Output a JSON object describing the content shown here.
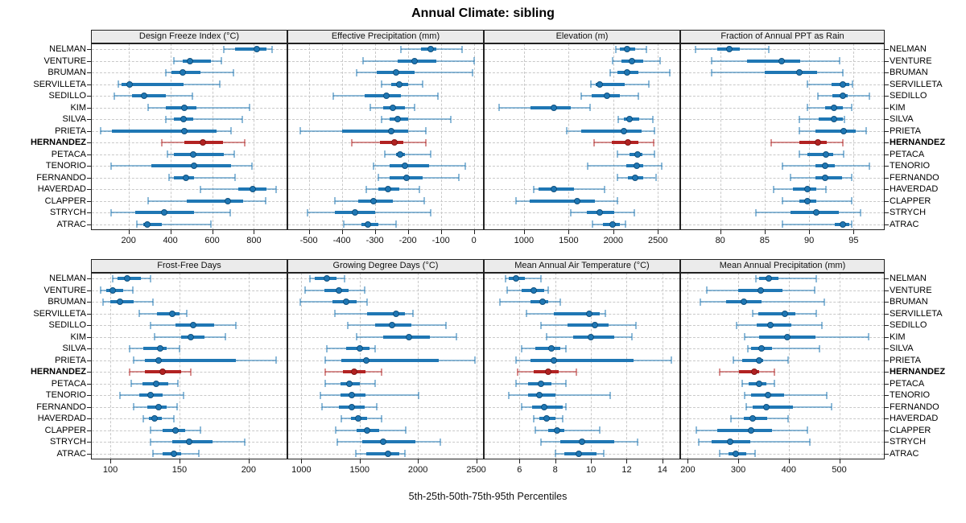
{
  "title": "Annual Climate: sibling",
  "caption": "5th-25th-50th-75th-95th Percentiles",
  "colors": {
    "series_blue": "#1f77b4",
    "series_blue_light": "rgba(31,119,180,0.5)",
    "highlight_red": "#b22222",
    "highlight_red_light": "rgba(178,34,34,0.5)",
    "strip_bg": "#ebebeb",
    "grid": "#c9c9c9",
    "border": "#222222"
  },
  "chart_data": {
    "type": "dot-interval-lattice",
    "percentiles": [
      5,
      25,
      50,
      75,
      95
    ],
    "highlight_site": "HERNANDEZ",
    "sites": [
      "NELMAN",
      "VENTURE",
      "BRUMAN",
      "SERVILLETA",
      "SEDILLO",
      "KIM",
      "SILVA",
      "PRIETA",
      "HERNANDEZ",
      "PETACA",
      "TENORIO",
      "FERNANDO",
      "HAVERDAD",
      "CLAPPER",
      "STRYCH",
      "ATRAC"
    ],
    "panels": [
      {
        "title": "Design Freeze Index (°C)",
        "ticks": [
          200,
          400,
          600,
          800
        ],
        "xlim": [
          20,
          960
        ],
        "values": [
          [
            655,
            710,
            815,
            860,
            885
          ],
          [
            415,
            460,
            495,
            595,
            645
          ],
          [
            380,
            405,
            460,
            545,
            700
          ],
          [
            150,
            165,
            205,
            465,
            635
          ],
          [
            130,
            215,
            275,
            380,
            505
          ],
          [
            295,
            380,
            468,
            525,
            780
          ],
          [
            380,
            415,
            462,
            510,
            745
          ],
          [
            65,
            120,
            465,
            620,
            690
          ],
          [
            360,
            465,
            555,
            650,
            755
          ],
          [
            385,
            415,
            510,
            655,
            705
          ],
          [
            115,
            310,
            515,
            690,
            790
          ],
          [
            395,
            415,
            475,
            515,
            710
          ],
          [
            545,
            725,
            795,
            860,
            905
          ],
          [
            295,
            480,
            675,
            750,
            855
          ],
          [
            115,
            230,
            370,
            515,
            685
          ],
          [
            240,
            270,
            290,
            360,
            595
          ]
        ]
      },
      {
        "title": "Effective Precipitation (mm)",
        "ticks": [
          -500,
          -400,
          -300,
          -200,
          -100,
          0
        ],
        "xlim": [
          -565,
          30
        ],
        "values": [
          [
            -220,
            -160,
            -130,
            -115,
            -35
          ],
          [
            -335,
            -230,
            -180,
            -115,
            0
          ],
          [
            -355,
            -295,
            -235,
            -180,
            -5
          ],
          [
            -280,
            -250,
            -225,
            -200,
            -155
          ],
          [
            -425,
            -330,
            -265,
            -220,
            -110
          ],
          [
            -315,
            -275,
            -245,
            -210,
            -180
          ],
          [
            -280,
            -255,
            -230,
            -200,
            -70
          ],
          [
            -525,
            -400,
            -250,
            -200,
            -145
          ],
          [
            -370,
            -285,
            -240,
            -215,
            -145
          ],
          [
            -270,
            -235,
            -224,
            -210,
            -130
          ],
          [
            -305,
            -255,
            -210,
            -135,
            -25
          ],
          [
            -290,
            -255,
            -205,
            -155,
            -45
          ],
          [
            -325,
            -290,
            -260,
            -225,
            -165
          ],
          [
            -420,
            -350,
            -305,
            -245,
            -150
          ],
          [
            -505,
            -420,
            -360,
            -300,
            -130
          ],
          [
            -395,
            -340,
            -320,
            -290,
            -235
          ]
        ]
      },
      {
        "title": "Elevation (m)",
        "ticks": [
          1000,
          1500,
          2000,
          2500
        ],
        "xlim": [
          550,
          2750
        ],
        "values": [
          [
            2030,
            2075,
            2155,
            2245,
            2370
          ],
          [
            1990,
            2095,
            2210,
            2335,
            2525
          ],
          [
            1970,
            2045,
            2155,
            2280,
            2635
          ],
          [
            1750,
            1800,
            1850,
            2125,
            2400
          ],
          [
            1645,
            1755,
            1930,
            2070,
            2280
          ],
          [
            720,
            1075,
            1330,
            1520,
            1740
          ],
          [
            2060,
            2120,
            2180,
            2290,
            2445
          ],
          [
            1475,
            1640,
            2120,
            2320,
            2460
          ],
          [
            1785,
            1980,
            2165,
            2280,
            2450
          ],
          [
            2050,
            2180,
            2270,
            2330,
            2460
          ],
          [
            1710,
            2150,
            2260,
            2335,
            2540
          ],
          [
            2045,
            2165,
            2245,
            2335,
            2475
          ],
          [
            1105,
            1160,
            1330,
            1560,
            1905
          ],
          [
            910,
            1060,
            1600,
            1795,
            2050
          ],
          [
            1520,
            1705,
            1850,
            2010,
            2235
          ],
          [
            1770,
            1885,
            1995,
            2070,
            2140
          ]
        ]
      },
      {
        "title": "Fraction of Annual PPT as Rain",
        "ticks": [
          80,
          85,
          90,
          95
        ],
        "xlim": [
          75.5,
          98.5
        ],
        "values": [
          [
            77.2,
            79.7,
            81.0,
            82.2,
            85.5
          ],
          [
            79.0,
            83.0,
            86.9,
            89.0,
            93.4
          ],
          [
            79.0,
            85.0,
            88.9,
            90.9,
            93.8
          ],
          [
            89.8,
            92.5,
            93.8,
            94.5,
            94.9
          ],
          [
            91.0,
            92.6,
            93.8,
            94.3,
            96.8
          ],
          [
            89.8,
            91.8,
            92.8,
            93.8,
            94.8
          ],
          [
            88.9,
            91.1,
            92.8,
            93.8,
            94.0
          ],
          [
            88.9,
            90.7,
            93.9,
            95.2,
            96.4
          ],
          [
            85.7,
            88.9,
            91.0,
            92.0,
            93.8
          ],
          [
            88.9,
            89.8,
            91.9,
            92.7,
            93.9
          ],
          [
            87.0,
            90.7,
            91.8,
            92.9,
            96.8
          ],
          [
            87.9,
            90.7,
            91.8,
            93.7,
            94.8
          ],
          [
            86.0,
            88.2,
            89.8,
            90.8,
            91.9
          ],
          [
            87.0,
            88.9,
            89.8,
            90.8,
            94.8
          ],
          [
            84.0,
            87.9,
            90.8,
            93.3,
            95.8
          ],
          [
            87.0,
            92.9,
            93.8,
            94.5,
            94.8
          ]
        ]
      },
      {
        "title": "Frost-Free Days",
        "ticks": [
          100,
          150,
          200
        ],
        "xlim": [
          86,
          228
        ],
        "values": [
          [
            102,
            105,
            112,
            122,
            129
          ],
          [
            93,
            97,
            102,
            109,
            116
          ],
          [
            95,
            100,
            107,
            117,
            131
          ],
          [
            121,
            134,
            145,
            150,
            155
          ],
          [
            129,
            147,
            160,
            175,
            191
          ],
          [
            132,
            151,
            158,
            168,
            183
          ],
          [
            114,
            124,
            136,
            141,
            150
          ],
          [
            117,
            125,
            135,
            191,
            220
          ],
          [
            114,
            125,
            138,
            151,
            158
          ],
          [
            115,
            123,
            133,
            142,
            149
          ],
          [
            107,
            121,
            129,
            138,
            153
          ],
          [
            117,
            127,
            135,
            141,
            148
          ],
          [
            124,
            128,
            132,
            137,
            146
          ],
          [
            129,
            138,
            147,
            154,
            165
          ],
          [
            129,
            145,
            157,
            174,
            197
          ],
          [
            131,
            138,
            146,
            151,
            164
          ]
        ]
      },
      {
        "title": "Growing Degree Days (°C)",
        "ticks": [
          1000,
          1500,
          2000,
          2500
        ],
        "xlim": [
          880,
          2565
        ],
        "values": [
          [
            1070,
            1115,
            1215,
            1300,
            1370
          ],
          [
            1035,
            1195,
            1325,
            1405,
            1540
          ],
          [
            990,
            1270,
            1385,
            1475,
            1565
          ],
          [
            1285,
            1565,
            1810,
            1885,
            1955
          ],
          [
            1400,
            1630,
            1780,
            1945,
            2240
          ],
          [
            1475,
            1700,
            1920,
            2105,
            2330
          ],
          [
            1220,
            1385,
            1500,
            1585,
            1630
          ],
          [
            1205,
            1340,
            1560,
            2180,
            2490
          ],
          [
            1205,
            1355,
            1455,
            1550,
            1685
          ],
          [
            1205,
            1335,
            1415,
            1500,
            1630
          ],
          [
            1160,
            1335,
            1430,
            1550,
            2005
          ],
          [
            1180,
            1320,
            1430,
            1545,
            1645
          ],
          [
            1345,
            1425,
            1490,
            1565,
            1685
          ],
          [
            1295,
            1475,
            1565,
            1665,
            1895
          ],
          [
            1305,
            1520,
            1700,
            1980,
            2195
          ],
          [
            1470,
            1560,
            1745,
            1840,
            1885
          ]
        ]
      },
      {
        "title": "Mean Annual Air Temperature (°C)",
        "ticks": [
          6,
          8,
          10,
          12,
          14
        ],
        "xlim": [
          4,
          15
        ],
        "values": [
          [
            5.2,
            5.4,
            5.8,
            6.3,
            7.2
          ],
          [
            5.3,
            6.1,
            6.8,
            7.4,
            7.6
          ],
          [
            4.9,
            6.6,
            7.3,
            7.6,
            8.3
          ],
          [
            6.4,
            7.9,
            9.9,
            10.5,
            10.8
          ],
          [
            7.2,
            8.7,
            10.2,
            11.0,
            12.5
          ],
          [
            7.5,
            9.0,
            10.0,
            11.3,
            12.3
          ],
          [
            6.1,
            6.9,
            7.8,
            8.3,
            8.6
          ],
          [
            5.8,
            6.6,
            7.9,
            12.4,
            14.5
          ],
          [
            5.9,
            6.8,
            7.6,
            8.2,
            9.2
          ],
          [
            5.8,
            6.5,
            7.2,
            7.8,
            8.6
          ],
          [
            5.4,
            6.5,
            7.1,
            8.0,
            11.1
          ],
          [
            6.1,
            6.7,
            7.4,
            8.4,
            8.6
          ],
          [
            6.8,
            7.1,
            7.5,
            8.0,
            8.4
          ],
          [
            6.9,
            7.6,
            8.1,
            8.5,
            10.5
          ],
          [
            7.2,
            8.3,
            9.5,
            11.3,
            12.6
          ],
          [
            8.0,
            8.5,
            9.3,
            10.3,
            10.7
          ]
        ]
      },
      {
        "title": "Mean Annual Precipitation (mm)",
        "ticks": [
          200,
          300,
          400,
          500
        ],
        "xlim": [
          185,
          590
        ],
        "values": [
          [
            335,
            342,
            360,
            380,
            455
          ],
          [
            237,
            300,
            344,
            387,
            451
          ],
          [
            225,
            276,
            311,
            346,
            471
          ],
          [
            328,
            339,
            392,
            413,
            454
          ],
          [
            296,
            337,
            363,
            405,
            465
          ],
          [
            313,
            342,
            397,
            453,
            558
          ],
          [
            319,
            326,
            346,
            366,
            461
          ],
          [
            291,
            307,
            341,
            350,
            399
          ],
          [
            263,
            302,
            332,
            342,
            371
          ],
          [
            308,
            321,
            342,
            355,
            372
          ],
          [
            313,
            326,
            359,
            391,
            475
          ],
          [
            316,
            328,
            356,
            408,
            484
          ],
          [
            285,
            311,
            329,
            357,
            399
          ],
          [
            217,
            258,
            325,
            366,
            437
          ],
          [
            221,
            247,
            284,
            324,
            441
          ],
          [
            263,
            281,
            295,
            316,
            334
          ]
        ]
      }
    ]
  }
}
